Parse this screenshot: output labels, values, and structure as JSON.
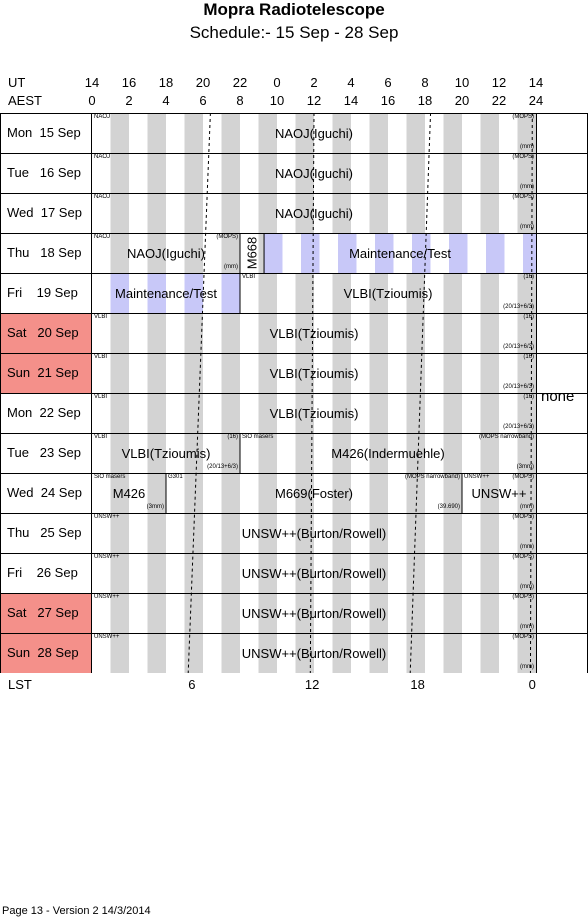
{
  "header": {
    "title": "Mopra Radiotelescope",
    "subtitle": "Schedule:- 15 Sep - 28 Sep"
  },
  "axis": {
    "ut_label": "UT",
    "aest_label": "AEST",
    "lst_label": "LST",
    "ut_ticks": [
      "14",
      "16",
      "18",
      "20",
      "22",
      "0",
      "2",
      "4",
      "6",
      "8",
      "10",
      "12",
      "14"
    ],
    "aest_ticks": [
      "0",
      "2",
      "4",
      "6",
      "8",
      "10",
      "12",
      "14",
      "16",
      "18",
      "20",
      "22",
      "24"
    ],
    "lst_ticks": [
      "6",
      "12",
      "18",
      "0"
    ]
  },
  "days": [
    {
      "label": "Mon  15 Sep",
      "weekend": false
    },
    {
      "label": "Tue   16 Sep",
      "weekend": false
    },
    {
      "label": "Wed  17 Sep",
      "weekend": false
    },
    {
      "label": "Thu   18 Sep",
      "weekend": false
    },
    {
      "label": "Fri    19 Sep",
      "weekend": false
    },
    {
      "label": "Sat   20 Sep",
      "weekend": true
    },
    {
      "label": "Sun  21 Sep",
      "weekend": true
    },
    {
      "label": "Mon  22 Sep",
      "weekend": false
    },
    {
      "label": "Tue   23 Sep",
      "weekend": false
    },
    {
      "label": "Wed  24 Sep",
      "weekend": false
    },
    {
      "label": "Thu   25 Sep",
      "weekend": false
    },
    {
      "label": "Fri    26 Sep",
      "weekend": false
    },
    {
      "label": "Sat   27 Sep",
      "weekend": true
    },
    {
      "label": "Sun  28 Sep",
      "weekend": true
    }
  ],
  "blocks": [
    {
      "row": 0,
      "start": 0,
      "end": 24,
      "label": "NAOJ(Iguchi)",
      "tl": "NAOJ",
      "tr": "(MOPS)",
      "br": "(mm)",
      "maint": false
    },
    {
      "row": 1,
      "start": 0,
      "end": 24,
      "label": "NAOJ(Iguchi)",
      "tl": "NAOJ",
      "tr": "(MOPS)",
      "br": "(mm)",
      "maint": false
    },
    {
      "row": 2,
      "start": 0,
      "end": 24,
      "label": "NAOJ(Iguchi)",
      "tl": "NAOJ",
      "tr": "(MOPS)",
      "br": "(mm)",
      "maint": false
    },
    {
      "row": 3,
      "start": 0,
      "end": 8,
      "label": "NAOJ(Iguchi)",
      "tl": "NAOJ",
      "tr": "(MOPS)",
      "br": "(mm)",
      "maint": false
    },
    {
      "row": 3,
      "start": 8,
      "end": 9.3,
      "label": "M668",
      "vertical": true,
      "maint": false
    },
    {
      "row": 3,
      "start": 9.3,
      "end": 24,
      "label": "Maintenance/Test",
      "maint": true
    },
    {
      "row": 4,
      "start": 0,
      "end": 8,
      "label": "Maintenance/Test",
      "maint": true
    },
    {
      "row": 4,
      "start": 8,
      "end": 24,
      "label": "VLBI(Tzioumis)",
      "tl": "VLBI",
      "tr": "(16)",
      "br": "(20/13+6/3)",
      "maint": false
    },
    {
      "row": 5,
      "start": 0,
      "end": 24,
      "label": "VLBI(Tzioumis)",
      "tl": "VLBI",
      "tr": "(16)",
      "br": "(20/13+6/3)",
      "maint": false
    },
    {
      "row": 6,
      "start": 0,
      "end": 24,
      "label": "VLBI(Tzioumis)",
      "tl": "VLBI",
      "tr": "(16)",
      "br": "(20/13+6/3)",
      "maint": false
    },
    {
      "row": 7,
      "start": 0,
      "end": 24,
      "label": "VLBI(Tzioumis)",
      "tl": "VLBI",
      "tr": "(16)",
      "br": "(20/13+6/3)",
      "maint": false
    },
    {
      "row": 8,
      "start": 0,
      "end": 8,
      "label": "VLBI(Tzioumis)",
      "tl": "VLBI",
      "tr": "(16)",
      "br": "(20/13+6/3)",
      "maint": false
    },
    {
      "row": 8,
      "start": 8,
      "end": 24,
      "label": "M426(Indermuehle)",
      "tl": "SiO masers",
      "tr": "(MOPS narrowband)",
      "br": "(3mm)",
      "maint": false
    },
    {
      "row": 9,
      "start": 0,
      "end": 4,
      "label": "M426",
      "tl": "SiO masers",
      "br": "(3mm)",
      "maint": false
    },
    {
      "row": 9,
      "start": 4,
      "end": 20,
      "label": "M669(Foster)",
      "tl": "G301",
      "tr": "(MOPS narrowband)",
      "br": "(39.690)",
      "maint": false
    },
    {
      "row": 9,
      "start": 20,
      "end": 24,
      "label": "UNSW++",
      "tl": "UNSW++",
      "tr": "(MOPS)",
      "br": "(mm)",
      "maint": false
    },
    {
      "row": 10,
      "start": 0,
      "end": 24,
      "label": "UNSW++(Burton/Rowell)",
      "tl": "UNSW++",
      "tr": "(MOPS)",
      "br": "(mm)",
      "maint": false
    },
    {
      "row": 11,
      "start": 0,
      "end": 24,
      "label": "UNSW++(Burton/Rowell)",
      "tl": "UNSW++",
      "tr": "(MOPS)",
      "br": "(mm)",
      "maint": false
    },
    {
      "row": 12,
      "start": 0,
      "end": 24,
      "label": "UNSW++(Burton/Rowell)",
      "tl": "UNSW++",
      "tr": "(MOPS)",
      "br": "(mm)",
      "maint": false
    },
    {
      "row": 13,
      "start": 0,
      "end": 24,
      "label": "UNSW++(Burton/Rowell)",
      "tl": "UNSW++",
      "tr": "(MOPS)",
      "br": "(mm)",
      "maint": false
    }
  ],
  "side_note": "none",
  "footer": "Page 13 - Version 2  14/3/2014"
}
